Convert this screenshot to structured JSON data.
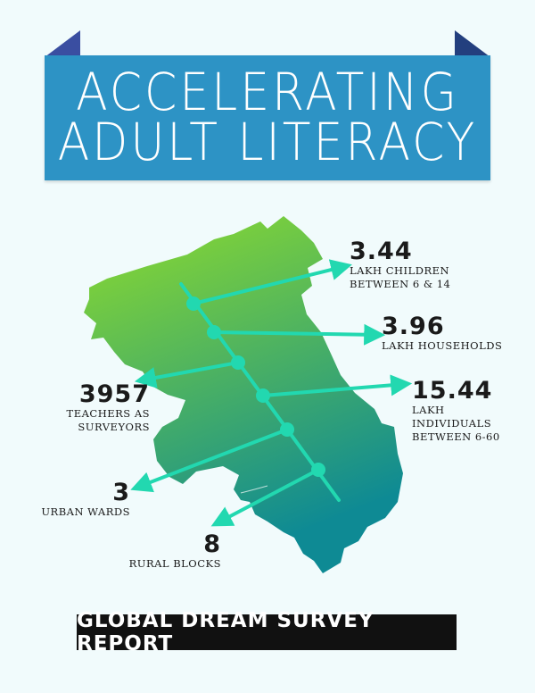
{
  "title": {
    "line1": "ACCELERATING",
    "line2": "ADULT LITERACY"
  },
  "colors": {
    "banner": "#2d93c5",
    "map_top": "#8fdc2c",
    "map_bottom": "#0e8a94",
    "connector": "#22d8b0",
    "footer_bg": "#111111"
  },
  "stats": [
    {
      "id": "children",
      "value": "3.44",
      "label": "LAKH CHILDREN\nBETWEEN 6 & 14"
    },
    {
      "id": "households",
      "value": "3.96",
      "label": "LAKH HOUSEHOLDS"
    },
    {
      "id": "individuals",
      "value": "15.44",
      "label": "LAKH\nINDIVIDUALS\nBETWEEN 6-60"
    },
    {
      "id": "teachers",
      "value": "3957",
      "label": "TEACHERS AS\nSURVEYORS"
    },
    {
      "id": "wards",
      "value": "3",
      "label": "URBAN WARDS"
    },
    {
      "id": "blocks",
      "value": "8",
      "label": "RURAL BLOCKS"
    }
  ],
  "footer": {
    "label": "GLOBAL DREAM SURVEY REPORT"
  }
}
